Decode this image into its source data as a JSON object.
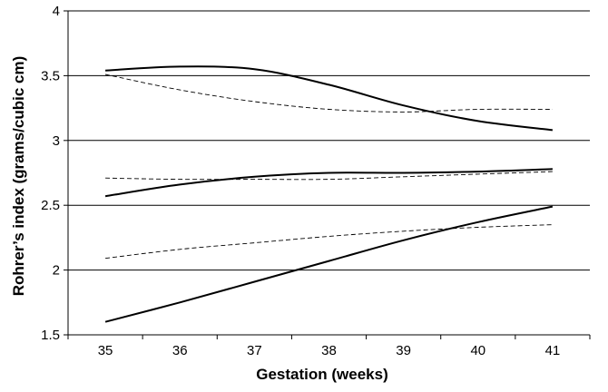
{
  "chart_data": {
    "type": "line",
    "title": "",
    "xlabel": "Gestation (weeks)",
    "ylabel": "Rohrer’s index (grams/cubic cm)",
    "x": [
      35,
      36,
      37,
      38,
      39,
      40,
      41
    ],
    "xlim": [
      34.5,
      41.5
    ],
    "ylim": [
      1.5,
      4
    ],
    "yticks": [
      "1.5",
      "2",
      "2.5",
      "3",
      "3.5",
      "4"
    ],
    "xticks": [
      "35",
      "36",
      "37",
      "38",
      "39",
      "40",
      "41"
    ],
    "grid": "horizontal",
    "series": [
      {
        "style": "solid",
        "values": [
          3.54,
          3.57,
          3.55,
          3.43,
          3.27,
          3.15,
          3.08
        ]
      },
      {
        "style": "solid",
        "values": [
          2.57,
          2.66,
          2.72,
          2.75,
          2.75,
          2.76,
          2.78
        ]
      },
      {
        "style": "solid",
        "values": [
          1.6,
          1.75,
          1.91,
          2.07,
          2.23,
          2.37,
          2.49
        ]
      },
      {
        "style": "dashed",
        "values": [
          3.51,
          3.39,
          3.3,
          3.24,
          3.22,
          3.24,
          3.24
        ]
      },
      {
        "style": "dashed",
        "values": [
          2.71,
          2.7,
          2.7,
          2.7,
          2.72,
          2.74,
          2.76
        ]
      },
      {
        "style": "dashed",
        "values": [
          2.09,
          2.16,
          2.21,
          2.26,
          2.3,
          2.33,
          2.35
        ]
      }
    ]
  }
}
